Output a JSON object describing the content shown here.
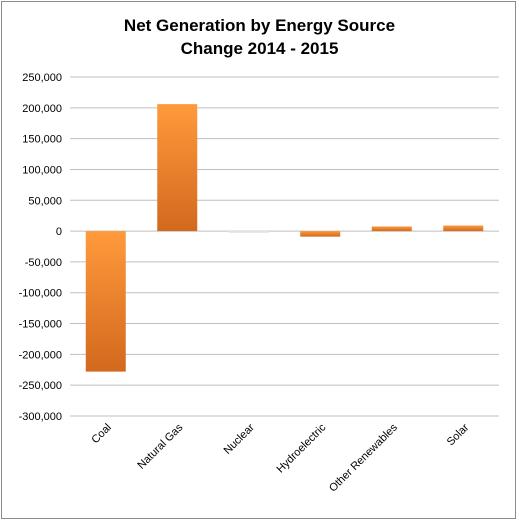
{
  "chart_data": {
    "type": "bar",
    "title": "Net Generation by Energy Source",
    "subtitle": "Change 2014 - 2015",
    "categories": [
      "Coal",
      "Natural Gas",
      "Nuclear",
      "Hydroelectric",
      "Other Renewables",
      "Solar"
    ],
    "values": [
      -228000,
      206000,
      -3000,
      -9000,
      7500,
      9000
    ],
    "ylim": [
      -300000,
      250000
    ],
    "yticks": [
      250000,
      200000,
      150000,
      100000,
      50000,
      0,
      -50000,
      -100000,
      -150000,
      -200000,
      -250000,
      -300000
    ],
    "ytick_labels": [
      "250,000",
      "200,000",
      "150,000",
      "100,000",
      "50,000",
      "0",
      "-50,000",
      "-100,000",
      "-150,000",
      "-200,000",
      "-250,000",
      "-300,000"
    ],
    "grid": true,
    "legend": "none",
    "colors": {
      "bar_top": "#ff9a3c",
      "bar_bottom": "#d2691e",
      "nuclear": "#e6e6e6",
      "grid": "#bfbfbf"
    }
  }
}
